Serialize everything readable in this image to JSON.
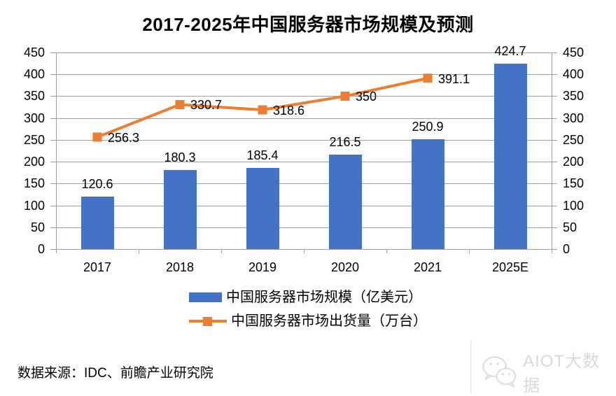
{
  "title": "2017-2025年中国服务器市场规模及预测",
  "chart_data": {
    "type": "bar",
    "subtype": "bar-line-combo",
    "categories": [
      "2017",
      "2018",
      "2019",
      "2020",
      "2021",
      "2025E"
    ],
    "series": [
      {
        "name": "中国服务器市场规模（亿美元）",
        "type": "bar",
        "color": "#4472C4",
        "values": [
          120.6,
          180.3,
          185.4,
          216.5,
          250.9,
          424.7
        ],
        "labels": [
          "120.6",
          "180.3",
          "185.4",
          "216.5",
          "250.9",
          "424.7"
        ]
      },
      {
        "name": "中国服务器市场出货量（万台）",
        "type": "line",
        "color": "#ED7D31",
        "marker": "square",
        "values": [
          256.3,
          330.7,
          318.6,
          350,
          391.1,
          null
        ],
        "labels": [
          "256.3",
          "330.7",
          "318.6",
          "350",
          "391.1",
          ""
        ]
      }
    ],
    "ylim": [
      0,
      450
    ],
    "ytick_step": 50,
    "axes": {
      "left": true,
      "right": true
    },
    "grid": true,
    "legend_position": "bottom",
    "xlabel": "",
    "ylabel": ""
  },
  "footer": {
    "source": "数据来源：IDC、前瞻产业研究院"
  },
  "watermark": {
    "label": "AIOT大数据"
  },
  "colors": {
    "bar": "#4472C4",
    "line": "#ED7D31",
    "grid": "#9E9E9E",
    "watermark": "#D9D9D9"
  }
}
